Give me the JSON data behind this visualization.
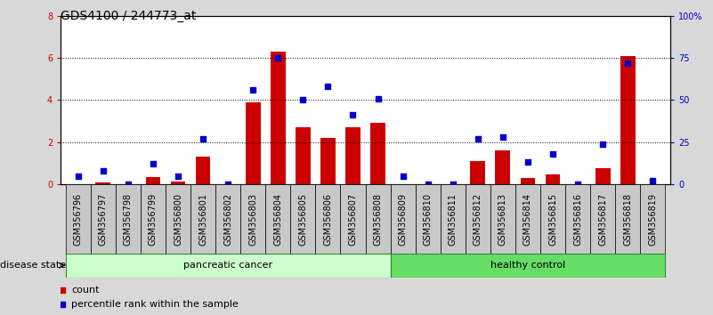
{
  "title": "GDS4100 / 244773_at",
  "samples": [
    "GSM356796",
    "GSM356797",
    "GSM356798",
    "GSM356799",
    "GSM356800",
    "GSM356801",
    "GSM356802",
    "GSM356803",
    "GSM356804",
    "GSM356805",
    "GSM356806",
    "GSM356807",
    "GSM356808",
    "GSM356809",
    "GSM356810",
    "GSM356811",
    "GSM356812",
    "GSM356813",
    "GSM356814",
    "GSM356815",
    "GSM356816",
    "GSM356817",
    "GSM356818",
    "GSM356819"
  ],
  "counts": [
    0.0,
    0.1,
    0.0,
    0.35,
    0.15,
    1.3,
    0.0,
    3.9,
    6.3,
    2.7,
    2.2,
    2.7,
    2.9,
    0.0,
    0.0,
    0.0,
    1.1,
    1.6,
    0.3,
    0.45,
    0.0,
    0.75,
    6.1,
    0.0
  ],
  "percentiles": [
    5,
    8,
    0,
    12,
    5,
    27,
    0,
    56,
    75,
    50,
    58,
    41,
    51,
    5,
    0,
    0,
    27,
    28,
    13,
    18,
    0,
    24,
    72,
    2
  ],
  "bar_color": "#cc0000",
  "dot_color": "#0000cc",
  "ylim_left": [
    0,
    8
  ],
  "ylim_right": [
    0,
    100
  ],
  "yticks_left": [
    0,
    2,
    4,
    6,
    8
  ],
  "yticks_right": [
    0,
    25,
    50,
    75,
    100
  ],
  "ytick_labels_right": [
    "0",
    "25",
    "50",
    "75",
    "100%"
  ],
  "bg_color": "#d8d8d8",
  "plot_bg": "#ffffff",
  "label_bg": "#c8c8c8",
  "groups": [
    {
      "label": "pancreatic cancer",
      "start": 0,
      "end": 12,
      "color": "#ccffcc"
    },
    {
      "label": "healthy control",
      "start": 13,
      "end": 23,
      "color": "#66dd66"
    }
  ],
  "disease_state_label": "disease state",
  "legend_count_label": "count",
  "legend_pct_label": "percentile rank within the sample",
  "title_fontsize": 10,
  "tick_fontsize": 7,
  "label_fontsize": 8,
  "axis_label_fontsize": 8
}
